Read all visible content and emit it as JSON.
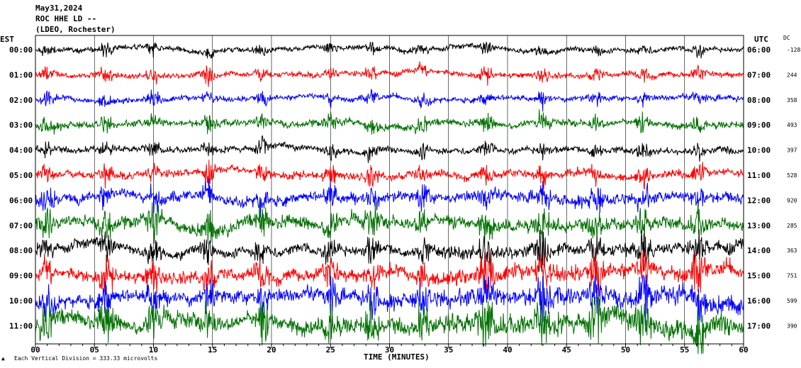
{
  "header": {
    "date": "May31,2024",
    "station": "ROC HHE LD --",
    "location": "(LDEO, Rochester)"
  },
  "chart_data": {
    "type": "line",
    "left_tz": "EST",
    "right_tz": "UTC",
    "dc_label": "DC",
    "xlabel": "TIME (MINUTES)",
    "xlim": [
      0,
      60
    ],
    "x_ticks": [
      "00",
      "05",
      "10",
      "15",
      "20",
      "25",
      "30",
      "35",
      "40",
      "45",
      "50",
      "55",
      "60"
    ],
    "footer_note": "Each Vertical Division = 333.33 microvolts",
    "trace_colors": [
      "#000000",
      "#ff0000",
      "#0000ff",
      "#007000"
    ],
    "rows": [
      {
        "est": "00:00",
        "utc": "06:00",
        "dc": "-128",
        "amp": 0.9
      },
      {
        "est": "01:00",
        "utc": "07:00",
        "dc": "244",
        "amp": 1.0
      },
      {
        "est": "02:00",
        "utc": "08:00",
        "dc": "358",
        "amp": 1.0
      },
      {
        "est": "03:00",
        "utc": "09:00",
        "dc": "493",
        "amp": 1.2
      },
      {
        "est": "04:00",
        "utc": "10:00",
        "dc": "397",
        "amp": 1.1
      },
      {
        "est": "05:00",
        "utc": "11:00",
        "dc": "528",
        "amp": 1.4
      },
      {
        "est": "06:00",
        "utc": "12:00",
        "dc": "920",
        "amp": 1.9
      },
      {
        "est": "07:00",
        "utc": "13:00",
        "dc": "285",
        "amp": 2.2
      },
      {
        "est": "08:00",
        "utc": "14:00",
        "dc": "363",
        "amp": 1.8
      },
      {
        "est": "09:00",
        "utc": "15:00",
        "dc": "751",
        "amp": 2.2
      },
      {
        "est": "10:00",
        "utc": "16:00",
        "dc": "599",
        "amp": 2.4
      },
      {
        "est": "11:00",
        "utc": "17:00",
        "dc": "390",
        "amp": 2.8
      }
    ]
  }
}
